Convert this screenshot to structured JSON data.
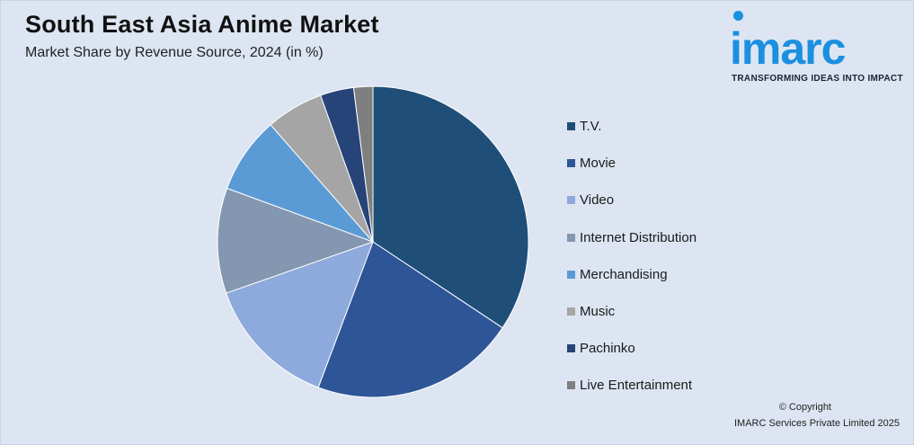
{
  "header": {
    "title": "South East Asia Anime Market",
    "subtitle": "Market Share by Revenue Source, 2024 (in %)"
  },
  "logo": {
    "word": "imarc",
    "tagline": "TRANSFORMING IDEAS INTO IMPACT",
    "color": "#1b8fe0"
  },
  "footer": {
    "copyright": "© Copyright",
    "company": "IMARC Services Private Limited 2025"
  },
  "chart_data": {
    "type": "pie",
    "title": "South East Asia Anime Market",
    "subtitle": "Market Share by Revenue Source, 2024 (in %)",
    "legend_position": "right",
    "start_angle_deg": 0,
    "direction": "clockwise",
    "series": [
      {
        "name": "T.V.",
        "value": 34.5,
        "color": "#1f4e79"
      },
      {
        "name": "Movie",
        "value": 21.5,
        "color": "#2e5597"
      },
      {
        "name": "Video",
        "value": 14.0,
        "color": "#8eaadc"
      },
      {
        "name": "Internet Distribution",
        "value": 11.0,
        "color": "#8497b0"
      },
      {
        "name": "Merchandising",
        "value": 8.0,
        "color": "#5b9bd5"
      },
      {
        "name": "Music",
        "value": 6.0,
        "color": "#a5a5a5"
      },
      {
        "name": "Pachinko",
        "value": 3.5,
        "color": "#264478"
      },
      {
        "name": "Live Entertainment",
        "value": 2.0,
        "color": "#7f7f7f"
      }
    ]
  }
}
